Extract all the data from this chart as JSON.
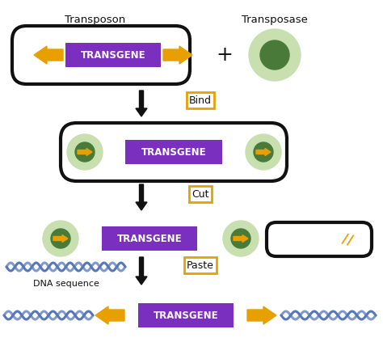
{
  "bg_color": "#ffffff",
  "purple": "#7B2FBE",
  "orange": "#E8A000",
  "green_outer": "#c8e0b0",
  "green_inner": "#4a7a3a",
  "black": "#111111",
  "blue_dna": "#5577bb",
  "title_transposon": "Transposon",
  "title_transposase": "Transposase",
  "label_transgene": "TRANSGENE",
  "label_bind": "Bind",
  "label_cut": "Cut",
  "label_paste": "Paste",
  "label_dna": "DNA sequence",
  "figw": 4.74,
  "figh": 4.44,
  "dpi": 100
}
